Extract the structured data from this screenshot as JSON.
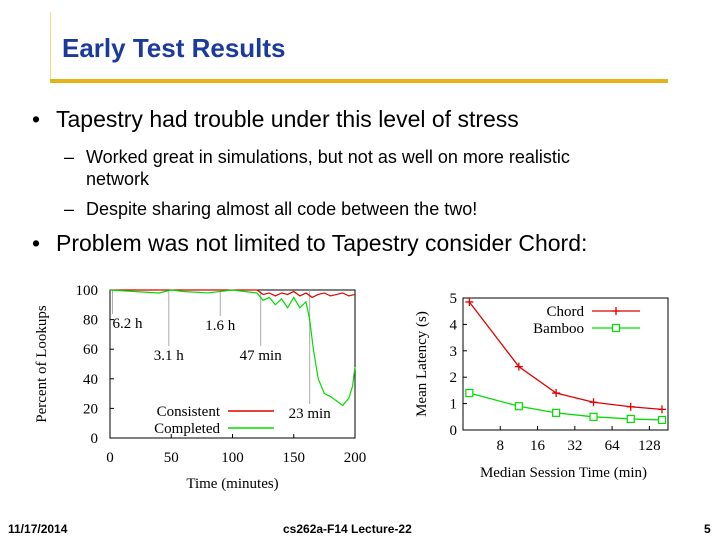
{
  "slide": {
    "title": "Early Test Results",
    "bullets": [
      {
        "text": "Tapestry had trouble under this level of stress",
        "subs": [
          "Worked great in simulations, but not as well on more realistic network",
          "Despite sharing almost all code between the two!"
        ]
      },
      {
        "text": "Problem was not limited to Tapestry consider Chord:"
      }
    ],
    "bullet_glyph": "•",
    "dash_glyph": "–",
    "sub_lines": {
      "s1_line1": "Worked great in simulations, but not as well on more realistic",
      "s1_line2": "network"
    }
  },
  "footer": {
    "date": "11/17/2014",
    "course": "cs262a-F14 Lecture-22",
    "page": "5"
  },
  "colors": {
    "title": "#1a3a9c",
    "rule": "#e6b417",
    "consistent": "#e00000",
    "completed": "#00dd00"
  },
  "chart_data": [
    {
      "type": "line",
      "xlabel": "Time (minutes)",
      "ylabel": "Percent of Lookups",
      "xticks": [
        0,
        50,
        100,
        150,
        200
      ],
      "yticks": [
        0,
        20,
        40,
        60,
        80,
        100
      ],
      "xlim": [
        0,
        200
      ],
      "ylim": [
        0,
        100
      ],
      "legend_position": "bottom-left",
      "series": [
        {
          "name": "Consistent",
          "color": "#e00000",
          "x": [
            0,
            40,
            80,
            120,
            125,
            130,
            135,
            140,
            145,
            150,
            155,
            160,
            165,
            170,
            175,
            180,
            185,
            190,
            195,
            200
          ],
          "y": [
            100,
            100,
            100,
            100,
            97,
            98,
            96,
            98,
            97,
            99,
            96,
            98,
            95,
            97,
            98,
            96,
            97,
            98,
            96,
            97
          ]
        },
        {
          "name": "Completed",
          "color": "#00dd00",
          "x": [
            0,
            20,
            40,
            50,
            60,
            80,
            100,
            110,
            120,
            125,
            130,
            135,
            140,
            145,
            150,
            155,
            160,
            163,
            166,
            170,
            175,
            180,
            185,
            190,
            195,
            198,
            200
          ],
          "y": [
            100,
            99,
            98,
            100,
            99,
            98,
            100,
            99,
            98,
            93,
            95,
            90,
            94,
            88,
            95,
            88,
            92,
            80,
            60,
            40,
            30,
            28,
            25,
            22,
            27,
            35,
            48
          ]
        }
      ],
      "annotations": [
        {
          "label": "6.2 h",
          "x": 2
        },
        {
          "label": "3.1 h",
          "x": 48
        },
        {
          "label": "1.6 h",
          "x": 90
        },
        {
          "label": "47 min",
          "x": 123
        },
        {
          "label": "23 min",
          "x": 163
        }
      ]
    },
    {
      "type": "line",
      "xlabel": "Median Session Time (min)",
      "ylabel": "Mean Latency (s)",
      "x_scale": "log2",
      "xticks": [
        8,
        16,
        32,
        64,
        128
      ],
      "xlim": [
        4,
        181
      ],
      "ylim": [
        0,
        5
      ],
      "yticks": [
        0,
        1,
        2,
        3,
        4,
        5
      ],
      "legend_position": "top-right",
      "series": [
        {
          "name": "Chord",
          "color": "#e00000",
          "marker": "plus",
          "x": [
            4.5,
            11.3,
            22.6,
            45.3,
            90.5,
            181
          ],
          "y": [
            4.85,
            2.4,
            1.4,
            1.05,
            0.88,
            0.78
          ]
        },
        {
          "name": "Bamboo",
          "color": "#00dd00",
          "marker": "square",
          "x": [
            4.5,
            11.3,
            22.6,
            45.3,
            90.5,
            181
          ],
          "y": [
            1.4,
            0.9,
            0.65,
            0.5,
            0.42,
            0.38
          ]
        }
      ]
    }
  ]
}
